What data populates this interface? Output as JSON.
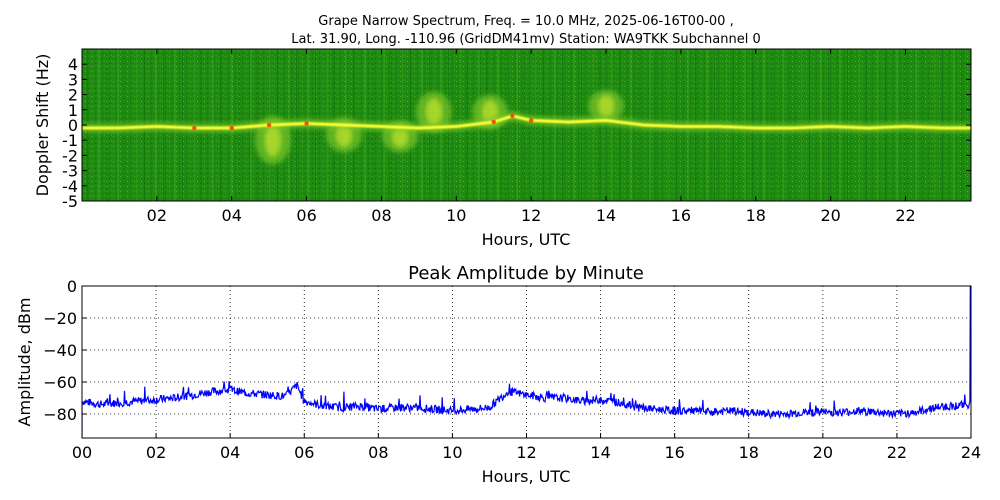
{
  "chart_data": [
    {
      "type": "heatmap",
      "title_line1": "Grape Narrow Spectrum, Freq. = 10.0 MHz, 2025-06-16T00-00 ,",
      "title_line2": "Lat.  31.90, Long. -110.96 (GridDM41mv) Station: WA9TKK Subchannel 0",
      "xlabel": "Hours, UTC",
      "ylabel": "Doppler Shift (Hz)",
      "xlim": [
        0,
        23.75
      ],
      "ylim": [
        -5,
        5
      ],
      "x_ticks": [
        "02",
        "04",
        "06",
        "08",
        "10",
        "12",
        "14",
        "16",
        "18",
        "20",
        "22"
      ],
      "x_tick_values": [
        2,
        4,
        6,
        8,
        10,
        12,
        14,
        16,
        18,
        20,
        22
      ],
      "y_ticks": [
        "4",
        "3",
        "2",
        "1",
        "0",
        "-1",
        "-2",
        "-3",
        "-4",
        "-5"
      ],
      "y_tick_values": [
        4,
        3,
        2,
        1,
        0,
        -1,
        -2,
        -3,
        -4,
        -5
      ],
      "colors": {
        "background": "#1f8a12",
        "mid": "#7ec92a",
        "high": "#ffff33",
        "peak": "#ff3300"
      },
      "carrier_trace": [
        {
          "x": 0.0,
          "y": -0.2
        },
        {
          "x": 1.0,
          "y": -0.2
        },
        {
          "x": 2.0,
          "y": -0.1
        },
        {
          "x": 3.0,
          "y": -0.2
        },
        {
          "x": 4.0,
          "y": -0.2
        },
        {
          "x": 5.0,
          "y": 0.0
        },
        {
          "x": 6.0,
          "y": 0.1
        },
        {
          "x": 7.0,
          "y": 0.0
        },
        {
          "x": 8.0,
          "y": -0.1
        },
        {
          "x": 9.0,
          "y": -0.2
        },
        {
          "x": 10.0,
          "y": -0.1
        },
        {
          "x": 11.0,
          "y": 0.2
        },
        {
          "x": 11.5,
          "y": 0.6
        },
        {
          "x": 12.0,
          "y": 0.3
        },
        {
          "x": 13.0,
          "y": 0.2
        },
        {
          "x": 14.0,
          "y": 0.3
        },
        {
          "x": 15.0,
          "y": 0.0
        },
        {
          "x": 16.0,
          "y": -0.1
        },
        {
          "x": 17.0,
          "y": -0.1
        },
        {
          "x": 18.0,
          "y": -0.2
        },
        {
          "x": 19.0,
          "y": -0.2
        },
        {
          "x": 20.0,
          "y": -0.1
        },
        {
          "x": 21.0,
          "y": -0.2
        },
        {
          "x": 22.0,
          "y": -0.1
        },
        {
          "x": 23.0,
          "y": -0.2
        },
        {
          "x": 23.75,
          "y": -0.2
        }
      ],
      "spread_features": [
        {
          "x": 5.1,
          "y_low": -2.6,
          "y_high": 0.6
        },
        {
          "x": 7.0,
          "y_low": -1.8,
          "y_high": 0.5
        },
        {
          "x": 8.5,
          "y_low": -1.8,
          "y_high": 0.3
        },
        {
          "x": 9.4,
          "y_low": -0.5,
          "y_high": 2.2
        },
        {
          "x": 10.9,
          "y_low": -0.3,
          "y_high": 2.0
        },
        {
          "x": 14.0,
          "y_low": 0.2,
          "y_high": 2.3
        }
      ]
    },
    {
      "type": "line",
      "title": "Peak Amplitude by Minute",
      "xlabel": "Hours, UTC",
      "ylabel": "Amplitude, dBm",
      "xlim": [
        0,
        24
      ],
      "ylim": [
        -95,
        0
      ],
      "x_ticks": [
        "00",
        "02",
        "04",
        "06",
        "08",
        "10",
        "12",
        "14",
        "16",
        "18",
        "20",
        "22",
        "24"
      ],
      "x_tick_values": [
        0,
        2,
        4,
        6,
        8,
        10,
        12,
        14,
        16,
        18,
        20,
        22,
        24
      ],
      "y_ticks": [
        "0",
        "−20",
        "−40",
        "−60",
        "−80"
      ],
      "y_tick_values": [
        0,
        -20,
        -40,
        -60,
        -80
      ],
      "grid": true,
      "line_color": "#0000ff",
      "series": [
        {
          "x": [
            0,
            0.5,
            1,
            1.5,
            2,
            2.5,
            3,
            3.5,
            4,
            4.5,
            5,
            5.5,
            5.8,
            6,
            6.5,
            7,
            7.5,
            8,
            8.5,
            9,
            9.5,
            10,
            10.5,
            11,
            11.5,
            12,
            12.5,
            13,
            13.5,
            14,
            14.5,
            15,
            15.5,
            16,
            16.5,
            17,
            17.5,
            18,
            18.5,
            19,
            19.5,
            20,
            20.5,
            21,
            21.5,
            22,
            22.5,
            23,
            23.5,
            23.97
          ],
          "y": [
            -72,
            -74,
            -73,
            -72,
            -71,
            -70,
            -68,
            -66,
            -65,
            -67,
            -68,
            -69,
            -62,
            -72,
            -75,
            -76,
            -75,
            -77,
            -76,
            -76,
            -77,
            -78,
            -77,
            -76,
            -66,
            -68,
            -70,
            -70,
            -72,
            -71,
            -73,
            -76,
            -77,
            -78,
            -78,
            -79,
            -78,
            -79,
            -80,
            -80,
            -79,
            -79,
            -79,
            -78,
            -79,
            -80,
            -79,
            -76,
            -75,
            -74
          ]
        }
      ]
    }
  ]
}
